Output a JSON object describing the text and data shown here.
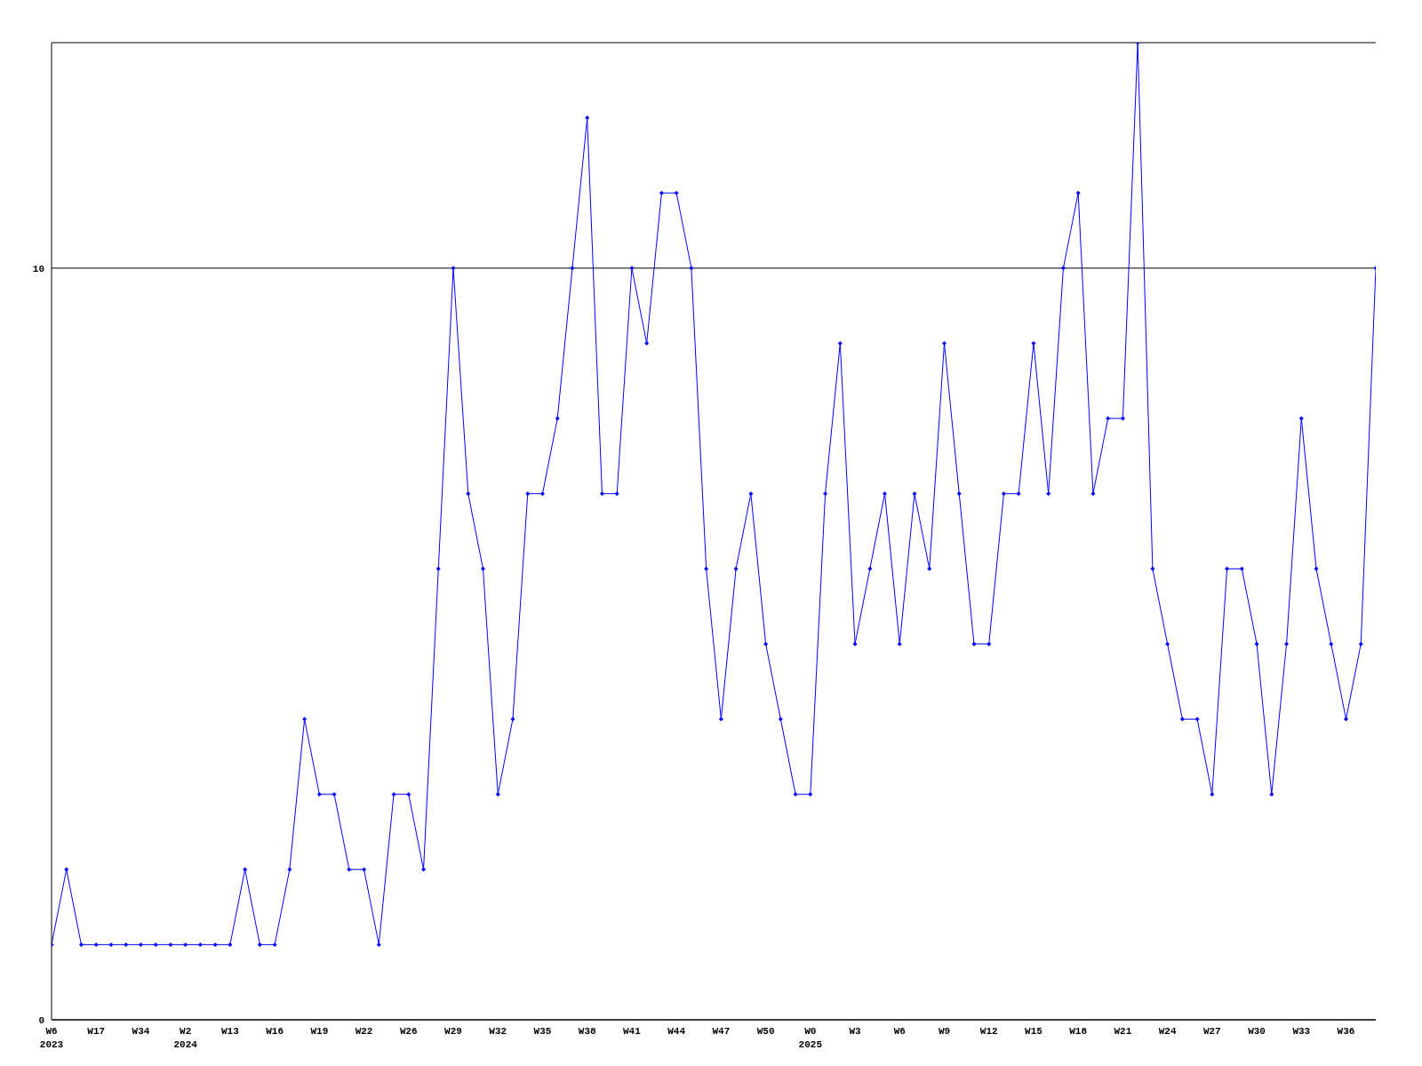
{
  "chart_data": {
    "type": "line",
    "categories": [
      "W6\n2023",
      null,
      null,
      "W17",
      null,
      null,
      "W34",
      null,
      null,
      "W2\n2024",
      null,
      null,
      "W13",
      null,
      null,
      "W16",
      null,
      null,
      "W19",
      null,
      null,
      "W22",
      null,
      null,
      "W26",
      null,
      null,
      "W29",
      null,
      null,
      "W32",
      null,
      null,
      "W35",
      null,
      null,
      "W38",
      null,
      null,
      "W41",
      null,
      null,
      "W44",
      null,
      null,
      "W47",
      null,
      null,
      "W50",
      null,
      null,
      "W0\n2025",
      null,
      null,
      "W3",
      null,
      null,
      "W6",
      null,
      null,
      "W9",
      null,
      null,
      "W12",
      null,
      null,
      "W15",
      null,
      null,
      "W18",
      null,
      null,
      "W21",
      null,
      null,
      "W24",
      null,
      null,
      "W27",
      null,
      null,
      "W30",
      null,
      null,
      "W33",
      null,
      null,
      "W36",
      null,
      null
    ],
    "series": [
      {
        "color": "#0000ff",
        "values": [
          1,
          2,
          1,
          1,
          1,
          1,
          1,
          1,
          1,
          1,
          1,
          1,
          1,
          2,
          1,
          1,
          2,
          4,
          3,
          3,
          2,
          2,
          1,
          3,
          3,
          2,
          6,
          10,
          7,
          6,
          3,
          4,
          7,
          7,
          8,
          10,
          12,
          7,
          7,
          10,
          9,
          11,
          11,
          10,
          6,
          4,
          6,
          7,
          5,
          4,
          3,
          3,
          7,
          9,
          5,
          6,
          7,
          5,
          7,
          6,
          9,
          7,
          5,
          5,
          7,
          7,
          9,
          7,
          10,
          11,
          7,
          8,
          8,
          13,
          6,
          5,
          4,
          4,
          3,
          6,
          6,
          5,
          3,
          5,
          8,
          6,
          5,
          4,
          5,
          10
        ]
      }
    ],
    "ylim": [
      0,
      13
    ],
    "yticks": [
      0,
      10
    ],
    "grid": "y",
    "marker": "diamond",
    "line_style": "solid"
  }
}
